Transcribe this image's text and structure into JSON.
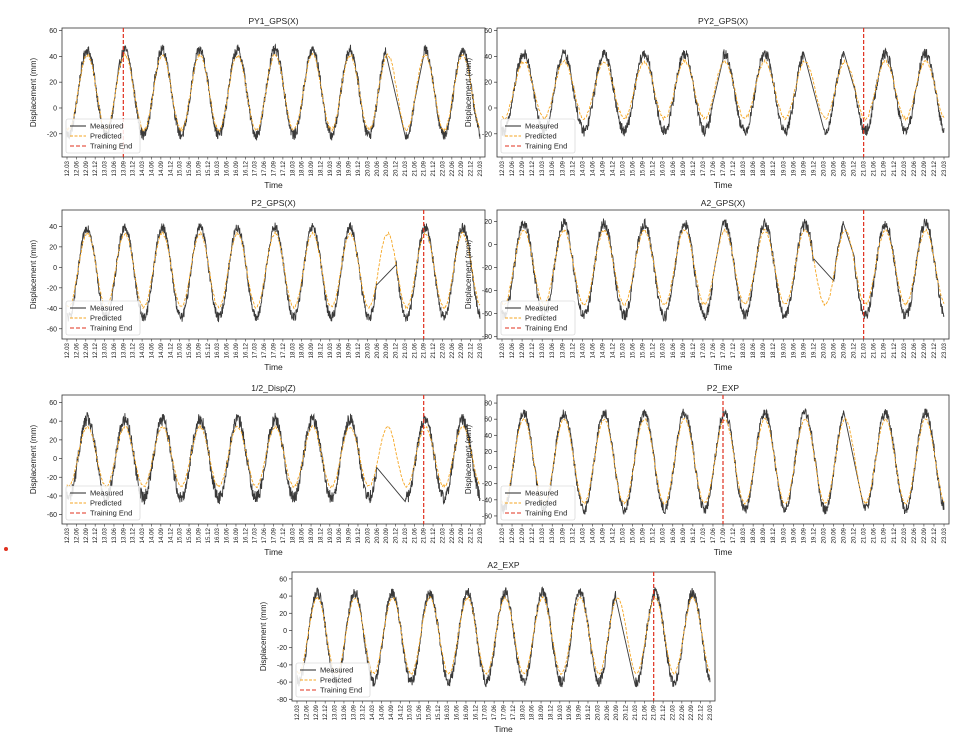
{
  "figure": {
    "time_label": "Time",
    "displacement_label": "Displacement (mm)",
    "legend_entries": [
      "Measured",
      "Predicted",
      "Training End"
    ],
    "colors": {
      "measured": "#3a3a3a",
      "predicted": "#f5a623",
      "training_end": "#e0301e"
    },
    "time_ticks": [
      "12.03",
      "12.06",
      "12.09",
      "12.12",
      "13.03",
      "13.06",
      "13.09",
      "13.12",
      "14.03",
      "14.06",
      "14.09",
      "14.12",
      "15.03",
      "15.06",
      "15.09",
      "15.12",
      "16.03",
      "16.06",
      "16.09",
      "16.12",
      "17.03",
      "17.06",
      "17.09",
      "17.12",
      "18.03",
      "18.06",
      "18.09",
      "18.12",
      "19.03",
      "19.06",
      "19.09",
      "19.12",
      "20.03",
      "20.06",
      "20.09",
      "20.12",
      "21.03",
      "21.06",
      "21.09",
      "21.12",
      "22.03",
      "22.06",
      "22.09",
      "22.12",
      "23.03"
    ]
  },
  "chart_data": [
    {
      "type": "line",
      "title": "PY1_GPS(X)",
      "xlabel": "Time",
      "ylabel": "Displacement (mm)",
      "ylim": [
        -38,
        62
      ],
      "yticks": [
        -20,
        0,
        20,
        40,
        60
      ],
      "training_end": "13.09",
      "legend": "lower-left",
      "x_start": "12.03",
      "x_end": "23.03",
      "cycle_months": 12,
      "series": [
        {
          "name": "Measured",
          "peak_month_offset": 6.5,
          "mean": 12,
          "amplitude": 33,
          "noise": 6,
          "gaps": [
            [
              "20.09",
              "21.03"
            ],
            [
              "21.06",
              "21.09"
            ]
          ]
        },
        {
          "name": "Predicted",
          "peak_month_offset": 6.5,
          "mean": 12,
          "amplitude": 29,
          "noise": 2
        }
      ]
    },
    {
      "type": "line",
      "title": "PY2_GPS(X)",
      "xlabel": "Time",
      "ylabel": "Displacement (mm)",
      "ylim": [
        -38,
        62
      ],
      "yticks": [
        -20,
        0,
        20,
        40,
        60
      ],
      "training_end": "21.03",
      "legend": "lower-left",
      "x_start": "12.03",
      "x_end": "23.03",
      "cycle_months": 12,
      "series": [
        {
          "name": "Measured",
          "peak_month_offset": 6.5,
          "mean": 12,
          "amplitude": 30,
          "noise": 6,
          "gaps": [
            [
              "17.06",
              "17.09"
            ],
            [
              "19.09",
              "20.03"
            ],
            [
              "20.09",
              "20.12"
            ]
          ]
        },
        {
          "name": "Predicted",
          "peak_month_offset": 6.5,
          "mean": 14,
          "amplitude": 22,
          "noise": 2
        }
      ]
    },
    {
      "type": "line",
      "title": "P2_GPS(X)",
      "xlabel": "Time",
      "ylabel": "Displacement (mm)",
      "ylim": [
        -70,
        56
      ],
      "yticks": [
        -60,
        -40,
        -20,
        0,
        20,
        40
      ],
      "training_end": "21.09",
      "legend": "lower-left",
      "x_start": "12.03",
      "x_end": "23.03",
      "cycle_months": 12,
      "series": [
        {
          "name": "Measured",
          "peak_month_offset": 6.5,
          "mean": -5,
          "amplitude": 44,
          "noise": 7,
          "gaps": [
            [
              "20.06",
              "20.12"
            ]
          ]
        },
        {
          "name": "Predicted",
          "peak_month_offset": 6.5,
          "mean": -3,
          "amplitude": 36,
          "noise": 2
        }
      ]
    },
    {
      "type": "line",
      "title": "A2_GPS(X)",
      "xlabel": "Time",
      "ylabel": "Displacement (mm)",
      "ylim": [
        -82,
        30
      ],
      "yticks": [
        -80,
        -60,
        -40,
        -20,
        0,
        20
      ],
      "training_end": "21.03",
      "legend": "lower-left",
      "x_start": "12.03",
      "x_end": "23.03",
      "cycle_months": 12,
      "series": [
        {
          "name": "Measured",
          "peak_month_offset": 6.5,
          "mean": -22,
          "amplitude": 40,
          "noise": 7,
          "gaps": [
            [
              "17.06",
              "17.09"
            ],
            [
              "19.12",
              "20.06"
            ],
            [
              "20.09",
              "20.12"
            ]
          ]
        },
        {
          "name": "Predicted",
          "peak_month_offset": 6.5,
          "mean": -20,
          "amplitude": 32,
          "noise": 2
        }
      ]
    },
    {
      "type": "line",
      "title": "1/2_Disp(Z)",
      "xlabel": "Time",
      "ylabel": "Displacement (mm)",
      "ylim": [
        -70,
        68
      ],
      "yticks": [
        -60,
        -40,
        -20,
        0,
        20,
        40,
        60
      ],
      "training_end": "21.09",
      "legend": "lower-left",
      "x_start": "12.03",
      "x_end": "23.03",
      "cycle_months": 12,
      "series": [
        {
          "name": "Measured",
          "peak_month_offset": 6.5,
          "mean": 0,
          "amplitude": 42,
          "noise": 10,
          "gaps": [
            [
              "20.06",
              "21.03"
            ]
          ]
        },
        {
          "name": "Predicted",
          "peak_month_offset": 6.5,
          "mean": 2,
          "amplitude": 32,
          "noise": 2
        }
      ]
    },
    {
      "type": "line",
      "title": "P2_EXP",
      "xlabel": "Time",
      "ylabel": "Displacement (mm)",
      "ylim": [
        -70,
        90
      ],
      "yticks": [
        -60,
        -40,
        -20,
        0,
        20,
        40,
        60,
        80
      ],
      "training_end": "17.09",
      "legend": "lower-left",
      "x_start": "12.03",
      "x_end": "23.03",
      "cycle_months": 12,
      "series": [
        {
          "name": "Measured",
          "peak_month_offset": 6.5,
          "mean": 8,
          "amplitude": 60,
          "noise": 9,
          "gaps": [
            [
              "20.09",
              "21.03"
            ]
          ]
        },
        {
          "name": "Predicted",
          "peak_month_offset": 6.5,
          "mean": 8,
          "amplitude": 52,
          "noise": 2
        }
      ]
    },
    {
      "type": "line",
      "title": "A2_EXP",
      "xlabel": "Time",
      "ylabel": "Displacement (mm)",
      "ylim": [
        -82,
        68
      ],
      "yticks": [
        -80,
        -60,
        -40,
        -20,
        0,
        20,
        40,
        60
      ],
      "training_end": "21.09",
      "legend": "lower-left",
      "x_start": "12.03",
      "x_end": "23.03",
      "cycle_months": 12,
      "series": [
        {
          "name": "Measured",
          "peak_month_offset": 6.5,
          "mean": -8,
          "amplitude": 52,
          "noise": 9,
          "gaps": [
            [
              "20.09",
              "21.03"
            ]
          ]
        },
        {
          "name": "Predicted",
          "peak_month_offset": 6.5,
          "mean": -6,
          "amplitude": 44,
          "noise": 2
        }
      ]
    }
  ]
}
